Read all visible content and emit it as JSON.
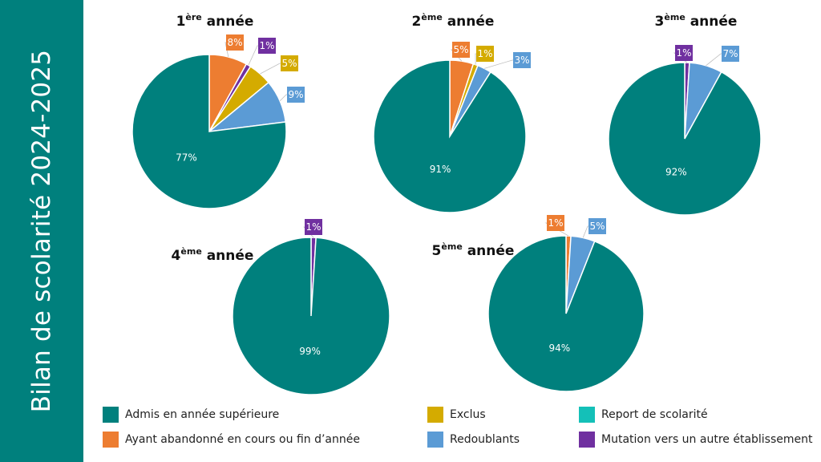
{
  "sidebar": {
    "title": "Bilan de scolarité 2024-2025"
  },
  "colors": {
    "admis": "#00807d",
    "abandon": "#ed7d31",
    "exclus": "#d4ab00",
    "report": "#14c0b8",
    "redoublants": "#5b9bd5",
    "mutation": "#7030a0"
  },
  "legend": [
    {
      "key": "admis",
      "label": "Admis en année supérieure"
    },
    {
      "key": "abandon",
      "label": "Ayant abandonné en cours ou fin d’année"
    },
    {
      "key": "exclus",
      "label": "Exclus"
    },
    {
      "key": "redoublants",
      "label": "Redoublants"
    },
    {
      "key": "report",
      "label": "Report de scolarité"
    },
    {
      "key": "mutation",
      "label": "Mutation vers un autre établissement"
    }
  ],
  "chart_data": [
    {
      "type": "pie",
      "title": "1",
      "title_sup": "ère",
      "title_suffix": " année",
      "slices": [
        {
          "key": "abandon",
          "value": 8,
          "label": "8%"
        },
        {
          "key": "mutation",
          "value": 1,
          "label": "1%"
        },
        {
          "key": "exclus",
          "value": 5,
          "label": "5%"
        },
        {
          "key": "redoublants",
          "value": 9,
          "label": "9%"
        },
        {
          "key": "admis",
          "value": 77,
          "label": "77%"
        }
      ]
    },
    {
      "type": "pie",
      "title": "2",
      "title_sup": "ème",
      "title_suffix": " année",
      "slices": [
        {
          "key": "abandon",
          "value": 5,
          "label": "5%"
        },
        {
          "key": "exclus",
          "value": 1,
          "label": "1%"
        },
        {
          "key": "redoublants",
          "value": 3,
          "label": "3%"
        },
        {
          "key": "admis",
          "value": 91,
          "label": "91%"
        }
      ]
    },
    {
      "type": "pie",
      "title": "3",
      "title_sup": "ème",
      "title_suffix": " année",
      "slices": [
        {
          "key": "mutation",
          "value": 1,
          "label": "1%"
        },
        {
          "key": "redoublants",
          "value": 7,
          "label": "7%"
        },
        {
          "key": "admis",
          "value": 92,
          "label": "92%"
        }
      ]
    },
    {
      "type": "pie",
      "title": "4",
      "title_sup": "ème",
      "title_suffix": " année",
      "slices": [
        {
          "key": "mutation",
          "value": 1,
          "label": "1%"
        },
        {
          "key": "admis",
          "value": 99,
          "label": "99%"
        }
      ]
    },
    {
      "type": "pie",
      "title": "5",
      "title_sup": "ème",
      "title_suffix": " année",
      "slices": [
        {
          "key": "abandon",
          "value": 1,
          "label": "1%"
        },
        {
          "key": "redoublants",
          "value": 5,
          "label": "5%"
        },
        {
          "key": "admis",
          "value": 94,
          "label": "94%"
        }
      ]
    }
  ]
}
